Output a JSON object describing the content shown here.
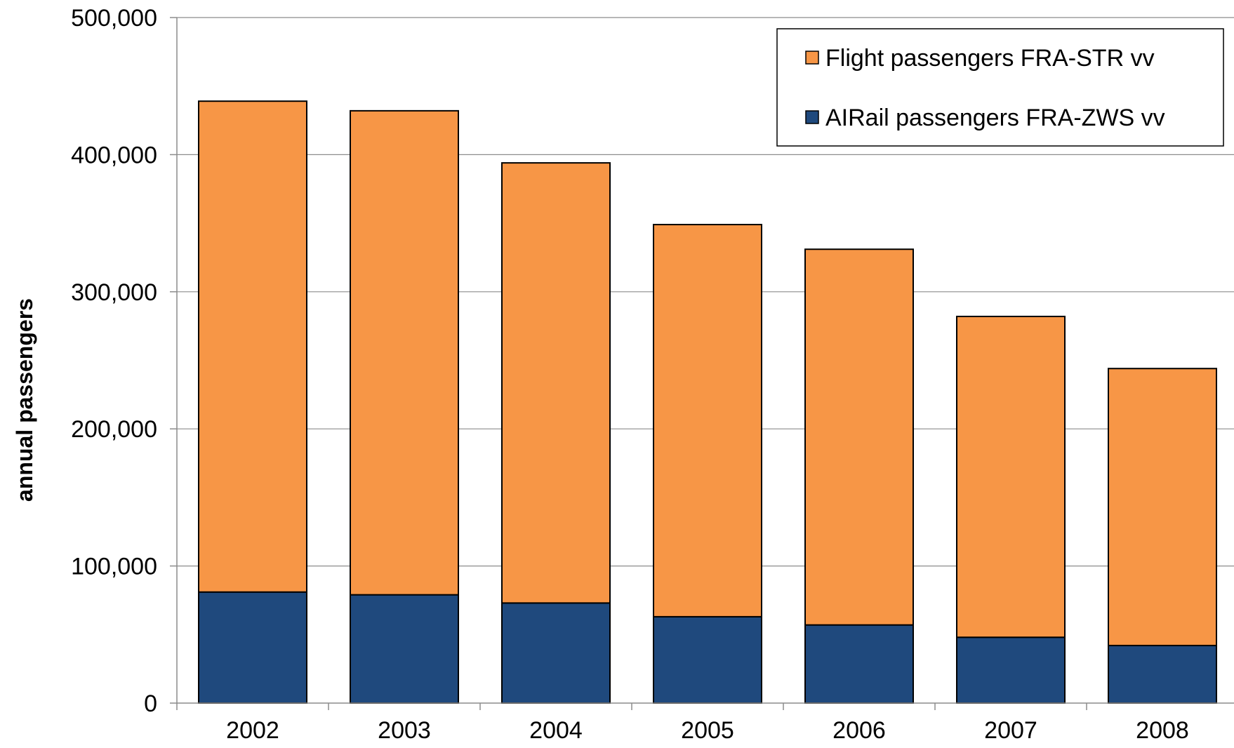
{
  "chart_data": {
    "type": "bar",
    "stacked": true,
    "title": "",
    "xlabel": "",
    "ylabel": "annual passengers",
    "categories": [
      "2002",
      "2003",
      "2004",
      "2005",
      "2006",
      "2007",
      "2008"
    ],
    "series": [
      {
        "name": "AIRail passengers FRA-ZWS vv",
        "color": "#1f497d",
        "values": [
          81000,
          79000,
          73000,
          63000,
          57000,
          48000,
          42000
        ]
      },
      {
        "name": "Flight passengers FRA-STR vv",
        "color": "#f79646",
        "values": [
          358000,
          353000,
          321000,
          286000,
          274000,
          234000,
          202000
        ]
      }
    ],
    "ylim": [
      0,
      500000
    ],
    "yticks": [
      0,
      100000,
      200000,
      300000,
      400000,
      500000
    ],
    "ytick_labels": [
      "0",
      "100,000",
      "200,000",
      "300,000",
      "400,000",
      "500,000"
    ],
    "grid": true,
    "legend_position": "top-right"
  }
}
